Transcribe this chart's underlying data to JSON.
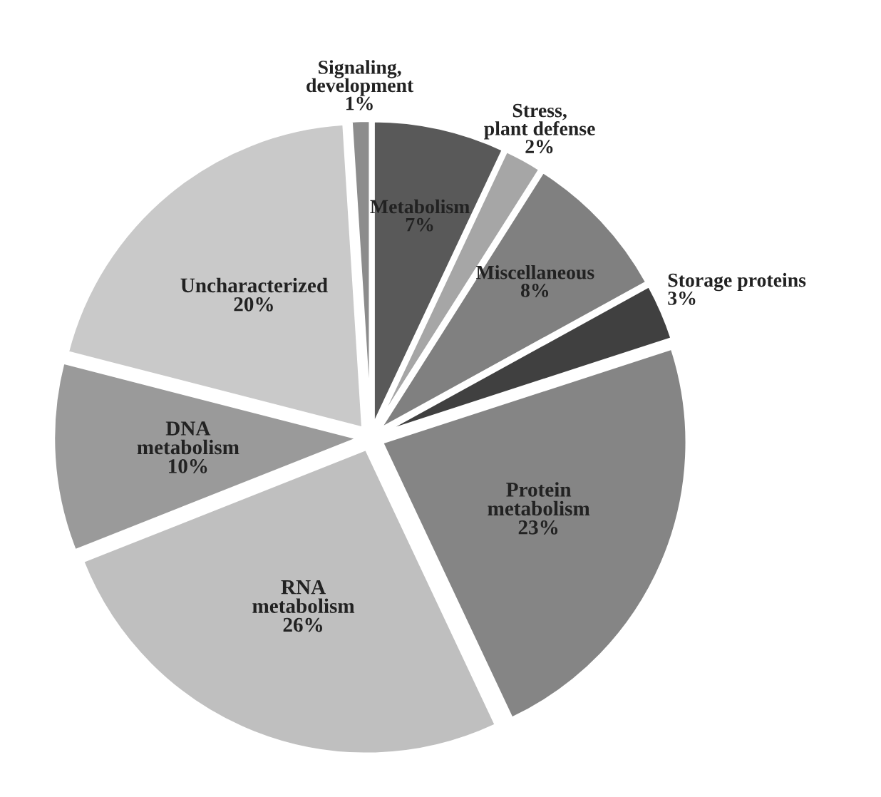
{
  "chart_data": {
    "type": "pie",
    "categories": [
      "Metabolism",
      "Stress,\nplant defense",
      "Miscellaneous",
      "Storage proteins",
      "Protein\nmetabolism",
      "RNA\nmetabolism",
      "DNA\nmetabolism",
      "Uncharacterized",
      "Signaling,\ndevelopment"
    ],
    "values": [
      7,
      2,
      8,
      3,
      23,
      26,
      10,
      20,
      1
    ],
    "value_labels": [
      "7%",
      "2%",
      "8%",
      "3%",
      "23%",
      "26%",
      "10%",
      "20%",
      "1%"
    ],
    "colors": [
      "#595959",
      "#a6a6a6",
      "#808080",
      "#404040",
      "#858585",
      "#bfbfbf",
      "#9a9a9a",
      "#c9c9c9",
      "#8c8c8c"
    ],
    "legend": false
  }
}
